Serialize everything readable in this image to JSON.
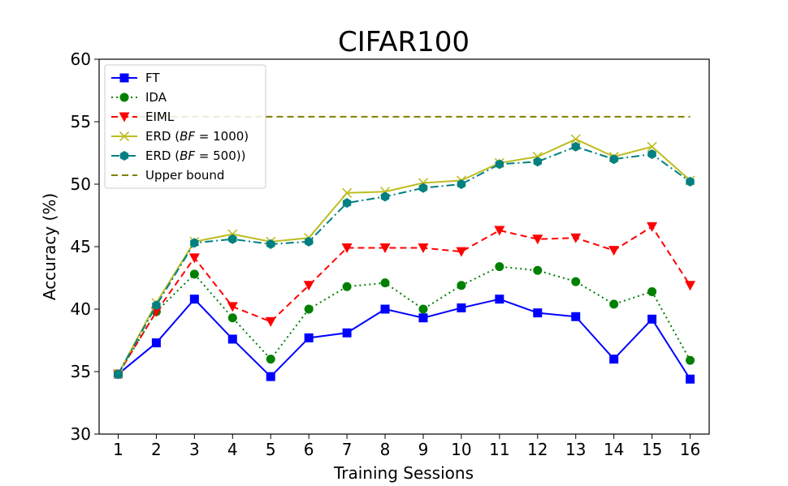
{
  "chart_data": {
    "type": "line",
    "title": "CIFAR100",
    "xlabel": "Training Sessions",
    "ylabel": "Accuracy (%)",
    "xlim": [
      0.5,
      16.5
    ],
    "ylim": [
      30,
      60
    ],
    "x": [
      1,
      2,
      3,
      4,
      5,
      6,
      7,
      8,
      9,
      10,
      11,
      12,
      13,
      14,
      15,
      16
    ],
    "xticks": [
      "1",
      "2",
      "3",
      "4",
      "5",
      "6",
      "7",
      "8",
      "9",
      "10",
      "11",
      "12",
      "13",
      "14",
      "15",
      "16"
    ],
    "yticks": [
      30,
      35,
      40,
      45,
      50,
      55,
      60
    ],
    "ytick_labels": [
      "30",
      "35",
      "40",
      "45",
      "50",
      "55",
      "60"
    ],
    "legend_position": "top-left",
    "series": [
      {
        "name": "FT",
        "color": "#0000ff",
        "dash": "solid",
        "marker": "square",
        "values": [
          34.8,
          37.3,
          40.8,
          37.6,
          34.6,
          37.7,
          38.1,
          40.0,
          39.3,
          40.1,
          40.8,
          39.7,
          39.4,
          36.0,
          39.2,
          34.4
        ]
      },
      {
        "name": "IDA",
        "color": "#008000",
        "dash": "dotted",
        "marker": "circle",
        "values": [
          34.8,
          39.8,
          42.8,
          39.3,
          36.0,
          40.0,
          41.8,
          42.1,
          40.0,
          41.9,
          43.4,
          43.1,
          42.2,
          40.4,
          41.4,
          35.9
        ]
      },
      {
        "name": "EIML",
        "color": "#ff0000",
        "dash": "dashed",
        "marker": "triangle-down",
        "values": [
          34.8,
          39.8,
          44.1,
          40.2,
          39.0,
          41.9,
          44.9,
          44.9,
          44.9,
          44.6,
          46.3,
          45.6,
          45.7,
          44.7,
          46.6,
          41.9
        ]
      },
      {
        "name": "ERD (BF = 1000)",
        "name_main": "ERD (",
        "name_italic": "BF",
        "name_rest": " = 1000)",
        "color": "#bcbd22",
        "dash": "solid",
        "marker": "x",
        "values": [
          34.8,
          40.5,
          45.4,
          46.0,
          45.4,
          45.7,
          49.3,
          49.4,
          50.1,
          50.3,
          51.7,
          52.2,
          53.6,
          52.2,
          53.0,
          50.3
        ]
      },
      {
        "name": "ERD (BF = 500))",
        "name_main": "ERD (",
        "name_italic": "BF",
        "name_rest": " = 500))",
        "color": "#008080",
        "dash": "dashdot",
        "marker": "hexagon",
        "values": [
          34.8,
          40.3,
          45.3,
          45.6,
          45.2,
          45.4,
          48.5,
          49.0,
          49.7,
          50.0,
          51.6,
          51.8,
          53.0,
          52.0,
          52.4,
          50.2
        ]
      },
      {
        "name": "Upper bound",
        "color": "#808000",
        "dash": "dashed",
        "marker": "none",
        "values": [
          55.4,
          55.4,
          55.4,
          55.4,
          55.4,
          55.4,
          55.4,
          55.4,
          55.4,
          55.4,
          55.4,
          55.4,
          55.4,
          55.4,
          55.4,
          55.4
        ]
      }
    ]
  }
}
